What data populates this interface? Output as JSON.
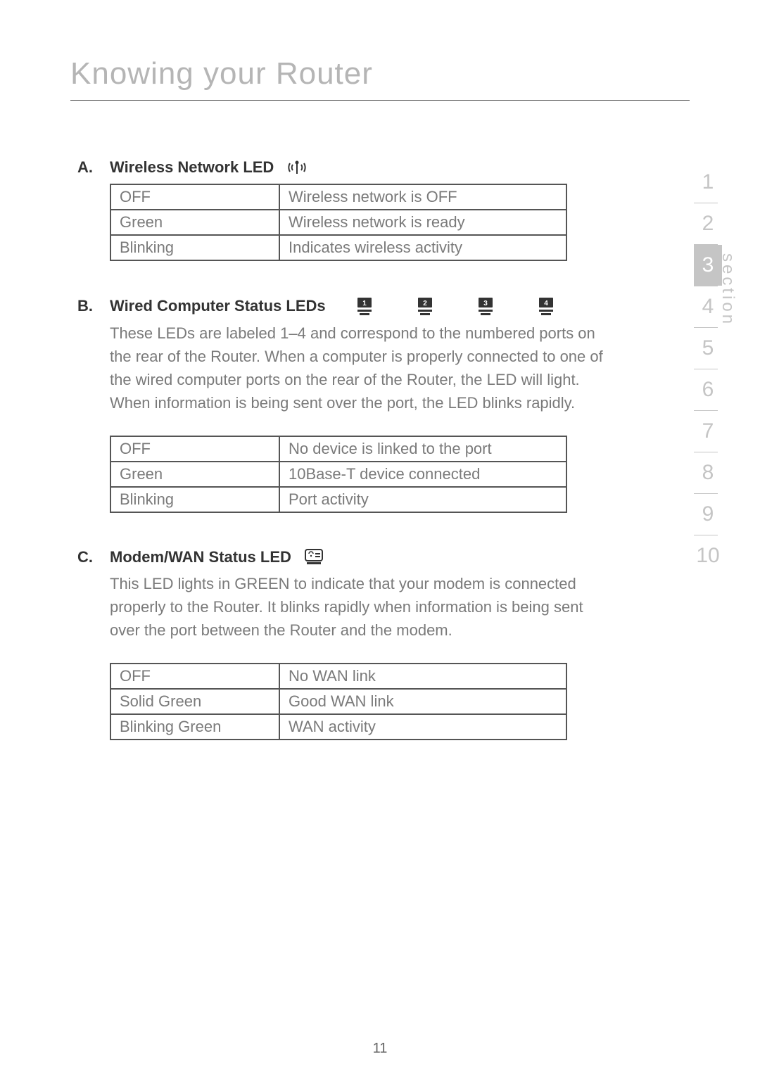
{
  "page": {
    "title": "Knowing your Router",
    "number": "11"
  },
  "nav": {
    "label": "section",
    "items": [
      "1",
      "2",
      "3",
      "4",
      "5",
      "6",
      "7",
      "8",
      "9",
      "10"
    ],
    "active_index": 2
  },
  "sections": {
    "a": {
      "letter": "A.",
      "title": "Wireless Network LED",
      "table": [
        {
          "state": "OFF",
          "meaning": "Wireless network is OFF"
        },
        {
          "state": "Green",
          "meaning": "Wireless network is ready"
        },
        {
          "state": "Blinking",
          "meaning": "Indicates wireless activity"
        }
      ]
    },
    "b": {
      "letter": "B.",
      "title": "Wired Computer Status LEDs",
      "desc": "These LEDs are labeled 1–4 and correspond to the numbered ports on the rear of the Router. When a computer is properly connected to one of the wired computer ports on the rear of the Router, the LED will light. When information is being sent over the port, the LED blinks rapidly.",
      "table": [
        {
          "state": "OFF",
          "meaning": "No device is linked to the port"
        },
        {
          "state": "Green",
          "meaning": "10Base-T device connected"
        },
        {
          "state": "Blinking",
          "meaning": "Port activity"
        }
      ],
      "port_numbers": [
        "1",
        "2",
        "3",
        "4"
      ]
    },
    "c": {
      "letter": "C.",
      "title": "Modem/WAN Status LED",
      "desc": "This LED lights in GREEN to indicate that your modem is connected properly to the Router. It blinks rapidly when information is being sent over the port between the Router and the modem.",
      "table": [
        {
          "state": "OFF",
          "meaning": "No WAN link"
        },
        {
          "state": "Solid Green",
          "meaning": "Good WAN link"
        },
        {
          "state": "Blinking Green",
          "meaning": "WAN activity"
        }
      ]
    }
  }
}
